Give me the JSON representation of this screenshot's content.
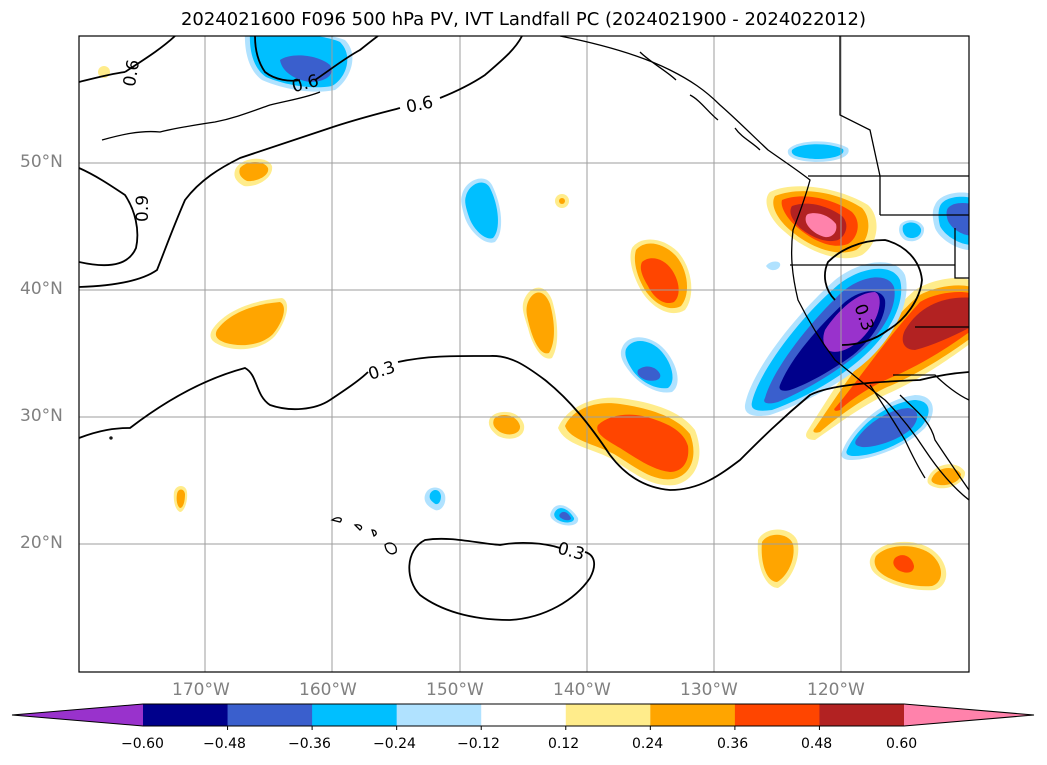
{
  "title": "2024021600 F096 500 hPa PV, IVT Landfall PC (2024021900 - 2024022012)",
  "latitude_labels": [
    "50°N",
    "40°N",
    "30°N",
    "20°N"
  ],
  "longitude_labels": [
    "170°W",
    "160°W",
    "150°W",
    "140°W",
    "130°W",
    "120°W"
  ],
  "contour_labels": [
    "0.6",
    "0.6",
    "0.9",
    "0.6",
    "0.3",
    "0.3",
    "0.3"
  ],
  "colorbar": {
    "colors": [
      "#9932cc",
      "#00008b",
      "#3a5fcd",
      "#00bfff",
      "#b0e2ff",
      "#ffffff",
      "#ffec8b",
      "#ffa500",
      "#ff4500",
      "#b22222",
      "#ff82ab"
    ],
    "tick_labels": [
      "−0.60",
      "−0.48",
      "−0.36",
      "−0.24",
      "−0.12",
      "0.12",
      "0.24",
      "0.36",
      "0.48",
      "0.60"
    ]
  }
}
